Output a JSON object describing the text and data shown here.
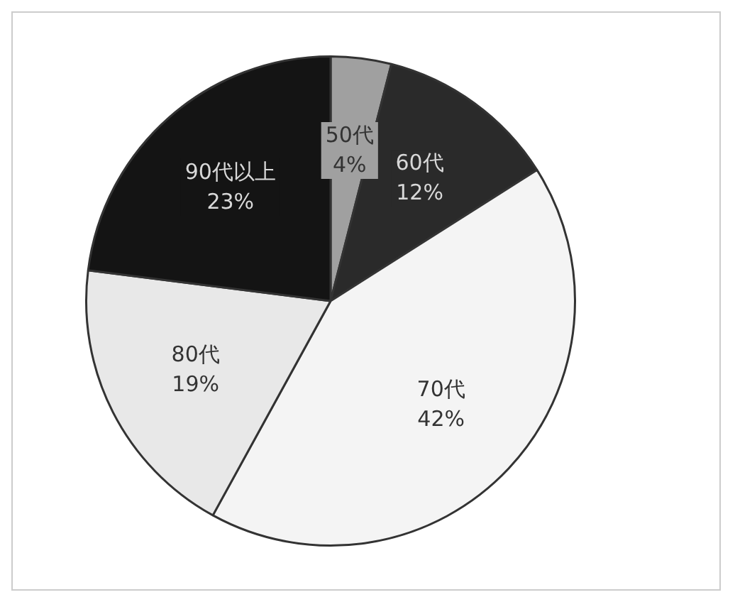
{
  "chart_data": {
    "type": "pie",
    "categories": [
      "50代",
      "60代",
      "70代",
      "80代",
      "90代以上"
    ],
    "values": [
      4,
      12,
      42,
      19,
      23
    ],
    "value_labels": [
      "4%",
      "12%",
      "42%",
      "19%",
      "23%"
    ],
    "colors": [
      "#a0a0a0",
      "#2a2a2a",
      "#f4f4f4",
      "#e8e8e8",
      "#141414"
    ],
    "legend": false
  }
}
